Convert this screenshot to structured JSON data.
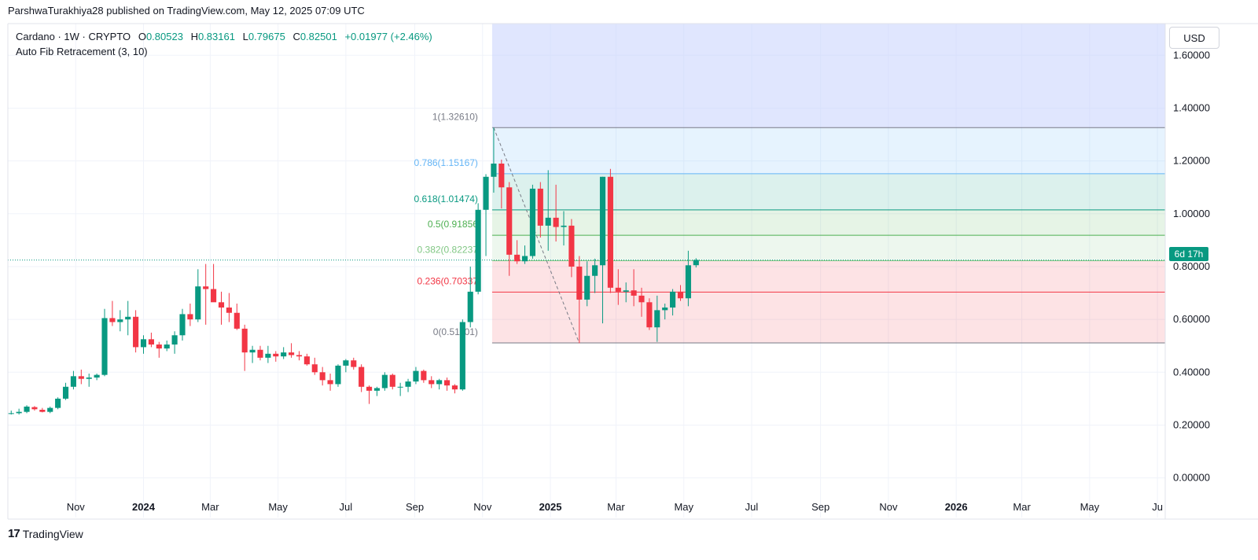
{
  "header": {
    "published_by": "ParshwaTurakhiya28 published on TradingView.com, May 12, 2025 07:09 UTC"
  },
  "legend": {
    "symbol": "Cardano · 1W · CRYPTO",
    "open_k": "O",
    "open": "0.80523",
    "high_k": "H",
    "high": "0.83161",
    "low_k": "L",
    "low": "0.79675",
    "close_k": "C",
    "close": "0.82501",
    "change": "+0.01977 (+2.46%)",
    "indicator": "Auto Fib Retracement (3, 10)"
  },
  "price_axis": {
    "currency": "USD",
    "countdown": "6d 17h"
  },
  "footer": {
    "brand": "TradingView",
    "logo": "17"
  },
  "colors": {
    "up": "#089981",
    "down": "#f23645",
    "grid": "#f0f3fa",
    "fib_1": "#787b86",
    "fib_0786": "#64b5f6",
    "fib_0618": "#089981",
    "fib_05": "#4caf50",
    "fib_0382": "#81c784",
    "fib_0236": "#f23645",
    "fib_0": "#787b86",
    "projection": "#c7d2fe"
  },
  "chart_data": {
    "type": "candlestick",
    "timeframe": "1W",
    "x_axis": {
      "ticks": [
        {
          "label": "Nov",
          "date": "2023-11-01",
          "bold": false
        },
        {
          "label": "2024",
          "date": "2024-01-01",
          "bold": true
        },
        {
          "label": "Mar",
          "date": "2024-03-01",
          "bold": false
        },
        {
          "label": "May",
          "date": "2024-05-01",
          "bold": false
        },
        {
          "label": "Jul",
          "date": "2024-07-01",
          "bold": false
        },
        {
          "label": "Sep",
          "date": "2024-09-01",
          "bold": false
        },
        {
          "label": "Nov",
          "date": "2024-11-01",
          "bold": false
        },
        {
          "label": "2025",
          "date": "2025-01-01",
          "bold": true
        },
        {
          "label": "Mar",
          "date": "2025-03-01",
          "bold": false
        },
        {
          "label": "May",
          "date": "2025-05-01",
          "bold": false
        },
        {
          "label": "Jul",
          "date": "2025-07-01",
          "bold": false
        },
        {
          "label": "Sep",
          "date": "2025-09-01",
          "bold": false
        },
        {
          "label": "Nov",
          "date": "2025-11-01",
          "bold": false
        },
        {
          "label": "2026",
          "date": "2026-01-01",
          "bold": true
        },
        {
          "label": "Mar",
          "date": "2026-03-01",
          "bold": false
        },
        {
          "label": "May",
          "date": "2026-05-01",
          "bold": false
        },
        {
          "label": "Ju",
          "date": "2026-07-01",
          "bold": false
        }
      ]
    },
    "y_axis": {
      "range": [
        -0.15,
        1.72
      ],
      "ticks": [
        "0.00000",
        "0.20000",
        "0.40000",
        "0.60000",
        "0.80000",
        "1.00000",
        "1.20000",
        "1.40000",
        "1.60000"
      ]
    },
    "last_price": 0.82501,
    "candles": [
      {
        "o": 0.245,
        "h": 0.255,
        "l": 0.24,
        "c": 0.245
      },
      {
        "o": 0.245,
        "h": 0.262,
        "l": 0.24,
        "c": 0.25
      },
      {
        "o": 0.25,
        "h": 0.275,
        "l": 0.245,
        "c": 0.27
      },
      {
        "o": 0.268,
        "h": 0.272,
        "l": 0.255,
        "c": 0.26
      },
      {
        "o": 0.258,
        "h": 0.265,
        "l": 0.248,
        "c": 0.25
      },
      {
        "o": 0.25,
        "h": 0.27,
        "l": 0.245,
        "c": 0.265
      },
      {
        "o": 0.265,
        "h": 0.305,
        "l": 0.26,
        "c": 0.3
      },
      {
        "o": 0.3,
        "h": 0.36,
        "l": 0.295,
        "c": 0.345
      },
      {
        "o": 0.345,
        "h": 0.405,
        "l": 0.335,
        "c": 0.385
      },
      {
        "o": 0.385,
        "h": 0.41,
        "l": 0.355,
        "c": 0.375
      },
      {
        "o": 0.375,
        "h": 0.395,
        "l": 0.345,
        "c": 0.38
      },
      {
        "o": 0.38,
        "h": 0.395,
        "l": 0.37,
        "c": 0.39
      },
      {
        "o": 0.39,
        "h": 0.64,
        "l": 0.385,
        "c": 0.605
      },
      {
        "o": 0.605,
        "h": 0.67,
        "l": 0.575,
        "c": 0.59
      },
      {
        "o": 0.59,
        "h": 0.635,
        "l": 0.555,
        "c": 0.6
      },
      {
        "o": 0.6,
        "h": 0.67,
        "l": 0.54,
        "c": 0.61
      },
      {
        "o": 0.61,
        "h": 0.635,
        "l": 0.475,
        "c": 0.495
      },
      {
        "o": 0.495,
        "h": 0.54,
        "l": 0.47,
        "c": 0.525
      },
      {
        "o": 0.525,
        "h": 0.55,
        "l": 0.495,
        "c": 0.505
      },
      {
        "o": 0.505,
        "h": 0.515,
        "l": 0.455,
        "c": 0.49
      },
      {
        "o": 0.49,
        "h": 0.52,
        "l": 0.48,
        "c": 0.505
      },
      {
        "o": 0.505,
        "h": 0.555,
        "l": 0.47,
        "c": 0.54
      },
      {
        "o": 0.54,
        "h": 0.64,
        "l": 0.52,
        "c": 0.62
      },
      {
        "o": 0.62,
        "h": 0.66,
        "l": 0.575,
        "c": 0.6
      },
      {
        "o": 0.6,
        "h": 0.79,
        "l": 0.59,
        "c": 0.725
      },
      {
        "o": 0.725,
        "h": 0.81,
        "l": 0.58,
        "c": 0.715
      },
      {
        "o": 0.715,
        "h": 0.81,
        "l": 0.68,
        "c": 0.665
      },
      {
        "o": 0.665,
        "h": 0.705,
        "l": 0.58,
        "c": 0.645
      },
      {
        "o": 0.645,
        "h": 0.7,
        "l": 0.59,
        "c": 0.625
      },
      {
        "o": 0.625,
        "h": 0.66,
        "l": 0.56,
        "c": 0.565
      },
      {
        "o": 0.565,
        "h": 0.58,
        "l": 0.405,
        "c": 0.475
      },
      {
        "o": 0.475,
        "h": 0.5,
        "l": 0.435,
        "c": 0.485
      },
      {
        "o": 0.485,
        "h": 0.5,
        "l": 0.445,
        "c": 0.455
      },
      {
        "o": 0.455,
        "h": 0.5,
        "l": 0.435,
        "c": 0.47
      },
      {
        "o": 0.47,
        "h": 0.48,
        "l": 0.44,
        "c": 0.46
      },
      {
        "o": 0.46,
        "h": 0.495,
        "l": 0.45,
        "c": 0.475
      },
      {
        "o": 0.475,
        "h": 0.51,
        "l": 0.455,
        "c": 0.465
      },
      {
        "o": 0.465,
        "h": 0.48,
        "l": 0.445,
        "c": 0.46
      },
      {
        "o": 0.46,
        "h": 0.47,
        "l": 0.425,
        "c": 0.43
      },
      {
        "o": 0.43,
        "h": 0.455,
        "l": 0.39,
        "c": 0.4
      },
      {
        "o": 0.4,
        "h": 0.42,
        "l": 0.35,
        "c": 0.37
      },
      {
        "o": 0.37,
        "h": 0.395,
        "l": 0.33,
        "c": 0.355
      },
      {
        "o": 0.355,
        "h": 0.43,
        "l": 0.345,
        "c": 0.425
      },
      {
        "o": 0.425,
        "h": 0.45,
        "l": 0.4,
        "c": 0.445
      },
      {
        "o": 0.445,
        "h": 0.455,
        "l": 0.41,
        "c": 0.42
      },
      {
        "o": 0.42,
        "h": 0.43,
        "l": 0.325,
        "c": 0.345
      },
      {
        "o": 0.345,
        "h": 0.35,
        "l": 0.28,
        "c": 0.33
      },
      {
        "o": 0.33,
        "h": 0.345,
        "l": 0.31,
        "c": 0.34
      },
      {
        "o": 0.34,
        "h": 0.4,
        "l": 0.33,
        "c": 0.39
      },
      {
        "o": 0.39,
        "h": 0.395,
        "l": 0.335,
        "c": 0.345
      },
      {
        "o": 0.345,
        "h": 0.36,
        "l": 0.31,
        "c": 0.345
      },
      {
        "o": 0.345,
        "h": 0.375,
        "l": 0.325,
        "c": 0.365
      },
      {
        "o": 0.365,
        "h": 0.42,
        "l": 0.355,
        "c": 0.405
      },
      {
        "o": 0.405,
        "h": 0.41,
        "l": 0.36,
        "c": 0.37
      },
      {
        "o": 0.37,
        "h": 0.385,
        "l": 0.34,
        "c": 0.355
      },
      {
        "o": 0.355,
        "h": 0.375,
        "l": 0.335,
        "c": 0.37
      },
      {
        "o": 0.37,
        "h": 0.38,
        "l": 0.33,
        "c": 0.35
      },
      {
        "o": 0.35,
        "h": 0.355,
        "l": 0.32,
        "c": 0.335
      },
      {
        "o": 0.335,
        "h": 0.6,
        "l": 0.33,
        "c": 0.59
      },
      {
        "o": 0.59,
        "h": 0.8,
        "l": 0.57,
        "c": 0.705
      },
      {
        "o": 0.705,
        "h": 1.04,
        "l": 0.695,
        "c": 1.015
      },
      {
        "o": 1.015,
        "h": 1.15,
        "l": 0.84,
        "c": 1.14
      },
      {
        "o": 1.14,
        "h": 1.326,
        "l": 1.08,
        "c": 1.19
      },
      {
        "o": 1.19,
        "h": 1.205,
        "l": 1.02,
        "c": 1.1
      },
      {
        "o": 1.1,
        "h": 1.12,
        "l": 0.765,
        "c": 0.845
      },
      {
        "o": 0.845,
        "h": 0.9,
        "l": 0.81,
        "c": 0.82
      },
      {
        "o": 0.82,
        "h": 0.88,
        "l": 0.81,
        "c": 0.84
      },
      {
        "o": 0.84,
        "h": 1.11,
        "l": 0.83,
        "c": 1.095
      },
      {
        "o": 1.095,
        "h": 1.12,
        "l": 0.91,
        "c": 0.955
      },
      {
        "o": 0.955,
        "h": 1.165,
        "l": 0.86,
        "c": 0.985
      },
      {
        "o": 0.985,
        "h": 1.11,
        "l": 0.895,
        "c": 0.95
      },
      {
        "o": 0.95,
        "h": 1.01,
        "l": 0.88,
        "c": 0.955
      },
      {
        "o": 0.955,
        "h": 0.98,
        "l": 0.76,
        "c": 0.8
      },
      {
        "o": 0.8,
        "h": 0.84,
        "l": 0.51,
        "c": 0.675
      },
      {
        "o": 0.675,
        "h": 0.82,
        "l": 0.65,
        "c": 0.765
      },
      {
        "o": 0.765,
        "h": 0.83,
        "l": 0.7,
        "c": 0.805
      },
      {
        "o": 0.805,
        "h": 1.14,
        "l": 0.585,
        "c": 1.14
      },
      {
        "o": 1.14,
        "h": 1.17,
        "l": 0.7,
        "c": 0.72
      },
      {
        "o": 0.72,
        "h": 0.79,
        "l": 0.655,
        "c": 0.705
      },
      {
        "o": 0.705,
        "h": 0.74,
        "l": 0.665,
        "c": 0.71
      },
      {
        "o": 0.71,
        "h": 0.79,
        "l": 0.65,
        "c": 0.69
      },
      {
        "o": 0.69,
        "h": 0.72,
        "l": 0.61,
        "c": 0.665
      },
      {
        "o": 0.665,
        "h": 0.68,
        "l": 0.56,
        "c": 0.57
      },
      {
        "o": 0.57,
        "h": 0.69,
        "l": 0.515,
        "c": 0.635
      },
      {
        "o": 0.635,
        "h": 0.66,
        "l": 0.6,
        "c": 0.645
      },
      {
        "o": 0.645,
        "h": 0.715,
        "l": 0.615,
        "c": 0.705
      },
      {
        "o": 0.705,
        "h": 0.73,
        "l": 0.67,
        "c": 0.68
      },
      {
        "o": 0.68,
        "h": 0.86,
        "l": 0.65,
        "c": 0.805
      },
      {
        "o": 0.80523,
        "h": 0.83161,
        "l": 0.79675,
        "c": 0.82501
      }
    ],
    "fib_levels": [
      {
        "ratio": "1",
        "value": 1.3261,
        "label": "1(1.32610)",
        "color": "#787b86",
        "fill": "rgba(120,123,134,0.18)"
      },
      {
        "ratio": "0.786",
        "value": 1.15167,
        "label": "0.786(1.15167)",
        "color": "#64b5f6",
        "fill": "rgba(100,181,246,0.16)"
      },
      {
        "ratio": "0.618",
        "value": 1.01474,
        "label": "0.618(1.01474)",
        "color": "#089981",
        "fill": "rgba(8,153,129,0.14)"
      },
      {
        "ratio": "0.5",
        "value": 0.91856,
        "label": "0.5(0.91856",
        "color": "#4caf50",
        "fill": "rgba(76,175,80,0.14)"
      },
      {
        "ratio": "0.382",
        "value": 0.82237,
        "label": "0.382(0.82237",
        "color": "#81c784",
        "fill": "rgba(129,199,132,0.14)"
      },
      {
        "ratio": "0.236",
        "value": 0.70337,
        "label": "0.236(0.70337",
        "color": "#f23645",
        "fill": "rgba(242,54,69,0.14)"
      },
      {
        "ratio": "0",
        "value": 0.51101,
        "label": "0(0.51101)",
        "color": "#787b86",
        "fill": null
      }
    ]
  }
}
